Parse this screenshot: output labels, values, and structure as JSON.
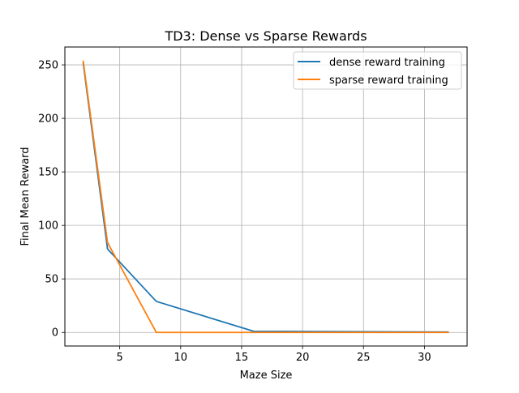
{
  "chart_data": {
    "type": "line",
    "title": "TD3: Dense vs Sparse Rewards",
    "xlabel": "Maze Size",
    "ylabel": "Final Mean Reward",
    "xlim": [
      0.5,
      33.5
    ],
    "ylim": [
      -12.7,
      266.7
    ],
    "xticks": [
      5,
      10,
      15,
      20,
      25,
      30
    ],
    "yticks": [
      0,
      50,
      100,
      150,
      200,
      250
    ],
    "grid": true,
    "legend": "top-right",
    "series": [
      {
        "name": "dense reward training",
        "color": "#1f77b4",
        "x": [
          2,
          4,
          8,
          16,
          32
        ],
        "y": [
          252,
          78,
          29,
          1,
          0.3
        ]
      },
      {
        "name": "sparse reward training",
        "color": "#ff7f0e",
        "x": [
          2,
          4,
          8,
          16,
          32
        ],
        "y": [
          254,
          84,
          0,
          0,
          0
        ]
      }
    ]
  }
}
